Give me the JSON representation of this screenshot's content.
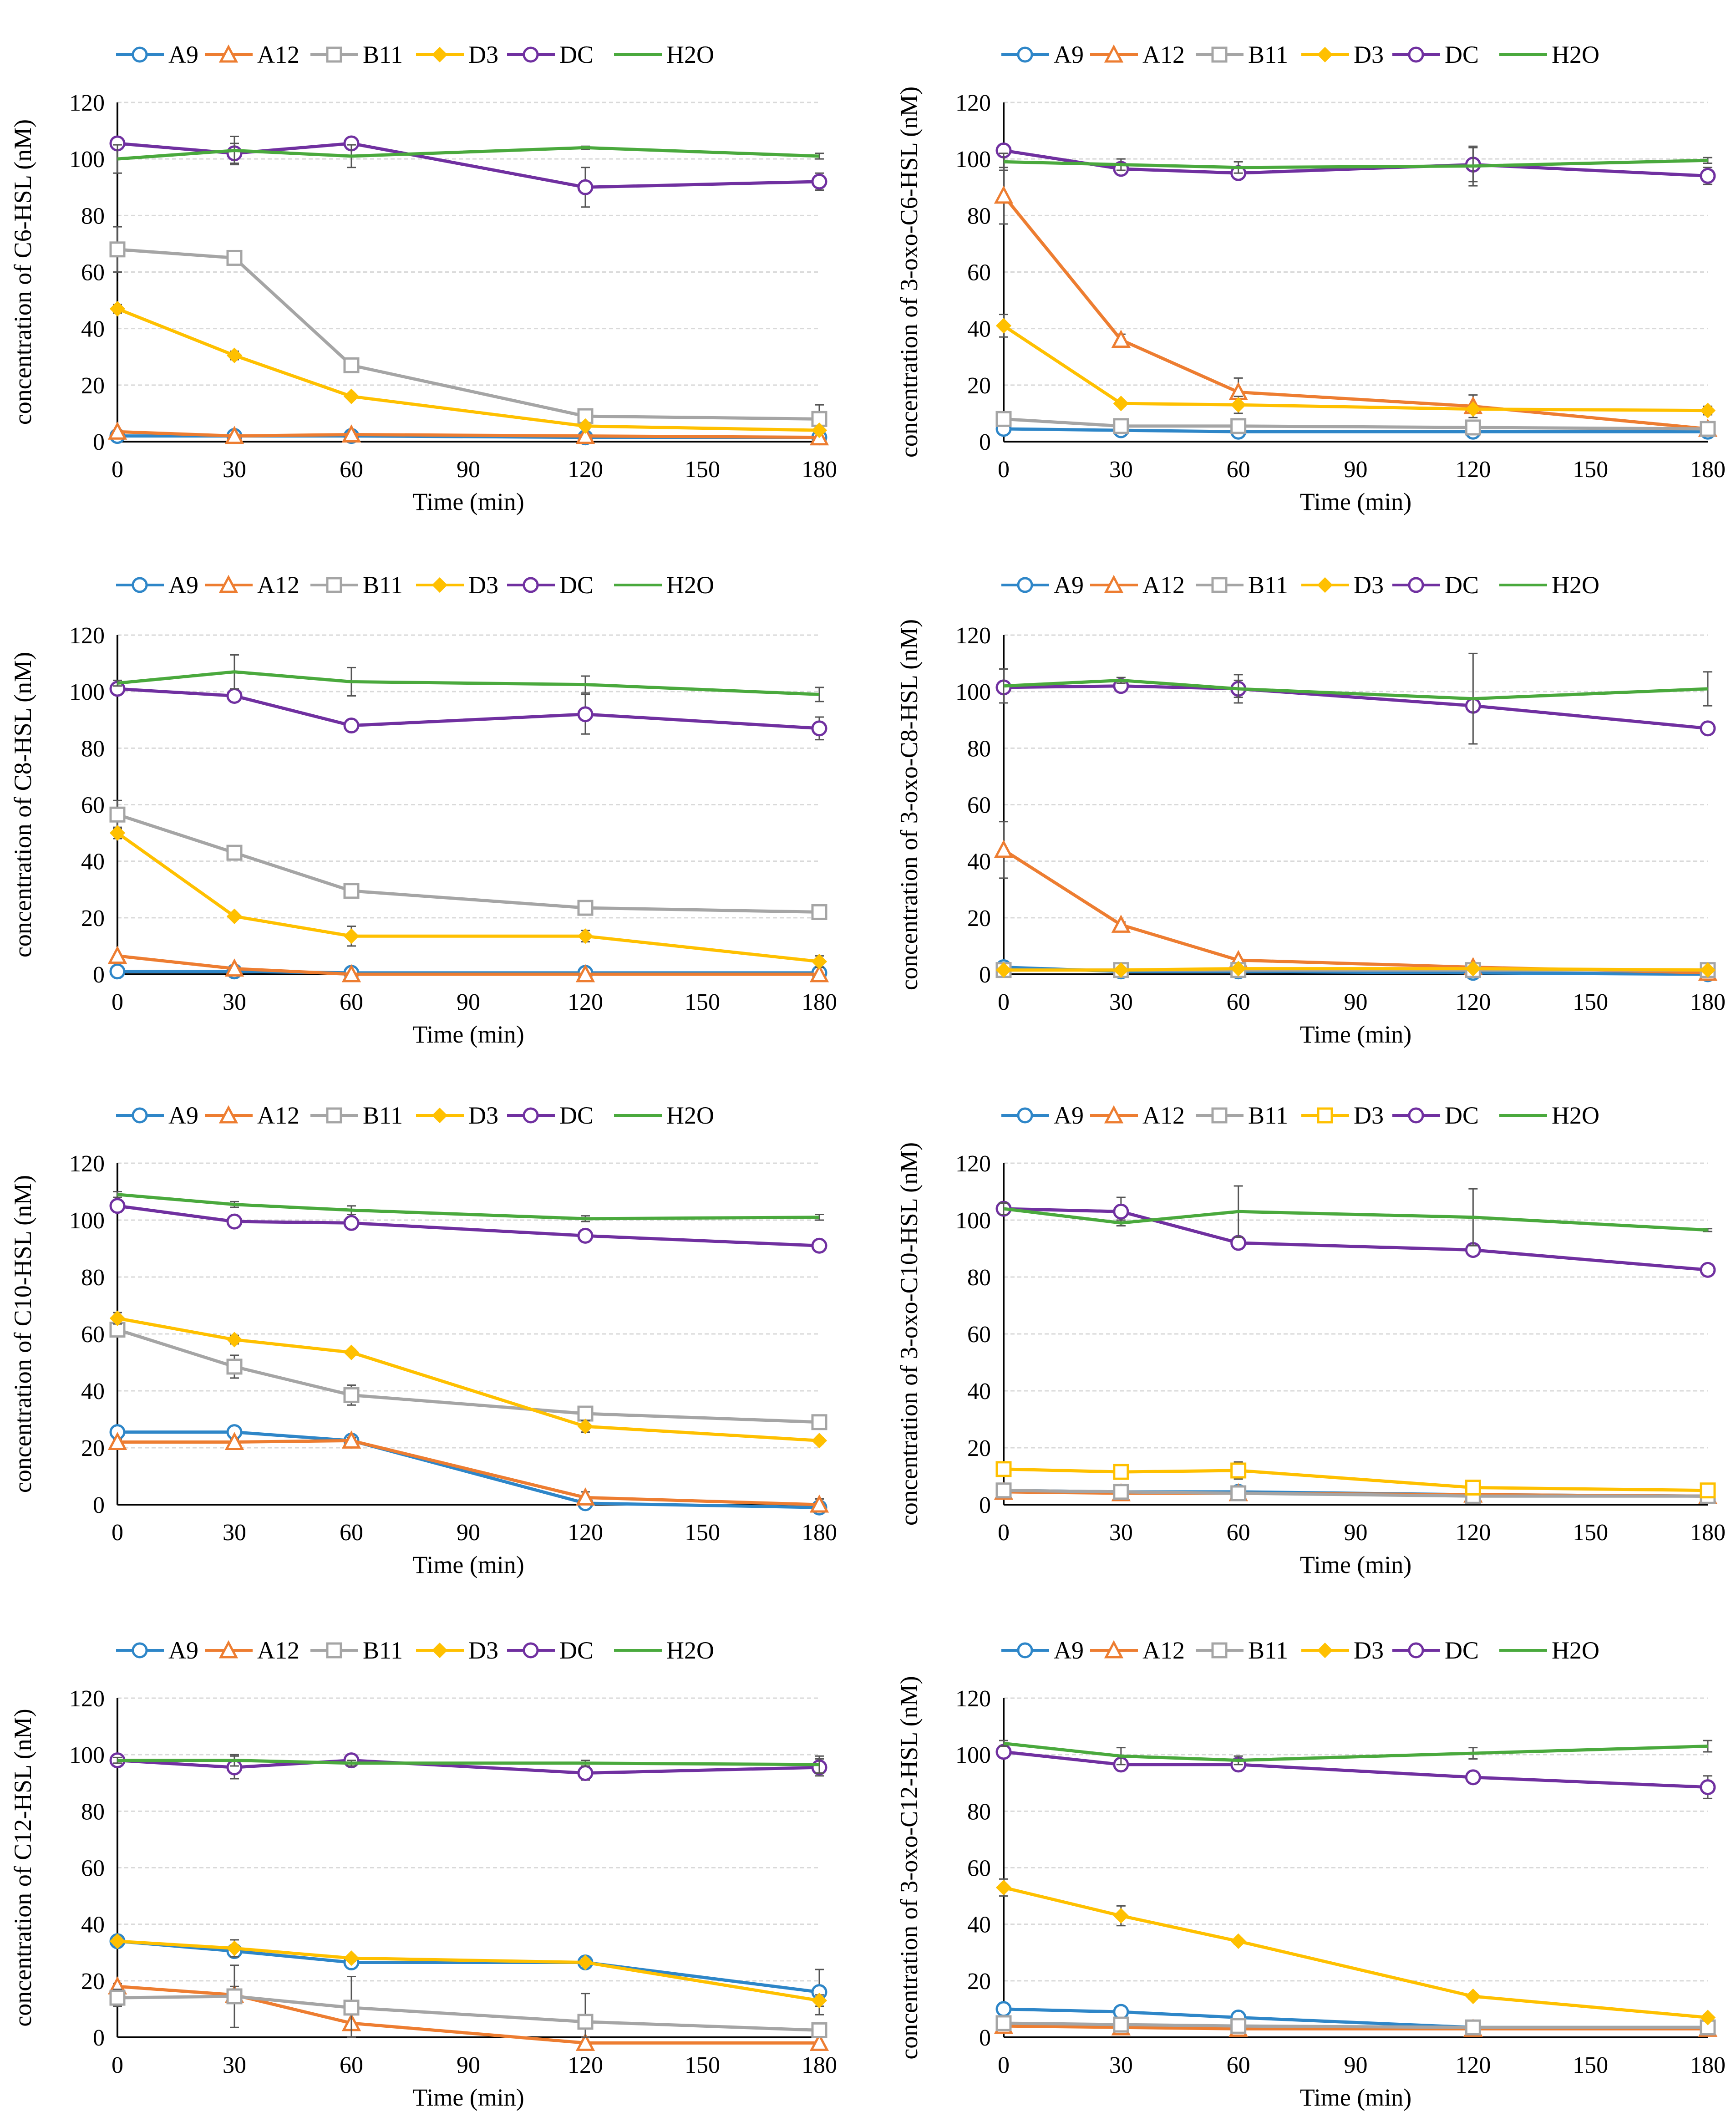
{
  "colors": {
    "A9": "#2e86c8",
    "A12": "#ed7d31",
    "B11": "#a5a5a5",
    "D3": "#ffc000",
    "DC": "#7030a0",
    "H2O": "#4aa93d",
    "grid": "#d9d9d9",
    "axis": "#000000",
    "errorbar": "#555555"
  },
  "chart_data": [
    {
      "type": "line",
      "title": "",
      "xlabel": "Time (min)",
      "ylabel": "concentration of C6-HSL (nM)",
      "x": [
        0,
        30,
        60,
        120,
        180
      ],
      "xlim": [
        0,
        180
      ],
      "ylim": [
        0,
        120
      ],
      "xticks": [
        0,
        30,
        60,
        90,
        120,
        150,
        180
      ],
      "yticks": [
        0,
        20,
        40,
        60,
        80,
        100,
        120
      ],
      "legend": "top",
      "series": [
        {
          "name": "A9",
          "marker": "circle",
          "values": [
            2,
            2,
            2,
            1.5,
            1.5
          ]
        },
        {
          "name": "A12",
          "marker": "triangle",
          "values": [
            3.5,
            2,
            2.5,
            2,
            1.5
          ]
        },
        {
          "name": "B11",
          "marker": "square",
          "values": [
            68,
            65,
            27,
            9,
            8
          ],
          "errors": [
            8,
            2,
            1.5,
            2,
            5
          ]
        },
        {
          "name": "D3",
          "marker": "diamond",
          "values": [
            47,
            30.5,
            16,
            5.5,
            4
          ],
          "errors": [
            1.5,
            1.5,
            1,
            1,
            1
          ]
        },
        {
          "name": "DC",
          "marker": "circle",
          "values": [
            105.5,
            102,
            105.5,
            90,
            92
          ],
          "errors": [
            1,
            3.5,
            1,
            7,
            3
          ]
        },
        {
          "name": "H2O",
          "marker": "none",
          "values": [
            100,
            103,
            101,
            104,
            101
          ],
          "errors": [
            5,
            5,
            4,
            0.5,
            1
          ]
        }
      ]
    },
    {
      "type": "line",
      "title": "",
      "xlabel": "Time (min)",
      "ylabel": "concentration of 3-oxo-C6-HSL (nM)",
      "x": [
        0,
        30,
        60,
        120,
        180
      ],
      "xlim": [
        0,
        180
      ],
      "ylim": [
        0,
        120
      ],
      "xticks": [
        0,
        30,
        60,
        90,
        120,
        150,
        180
      ],
      "yticks": [
        0,
        20,
        40,
        60,
        80,
        100,
        120
      ],
      "legend": "top",
      "series": [
        {
          "name": "A9",
          "marker": "circle",
          "values": [
            4.5,
            4,
            3.5,
            3.5,
            3.5
          ]
        },
        {
          "name": "A12",
          "marker": "triangle",
          "values": [
            87,
            36,
            17.5,
            12.5,
            4.5
          ],
          "errors": [
            10,
            2,
            5,
            4,
            1
          ]
        },
        {
          "name": "B11",
          "marker": "square",
          "values": [
            8,
            5.5,
            5.5,
            5,
            4.5
          ]
        },
        {
          "name": "D3",
          "marker": "diamond",
          "values": [
            41,
            13.5,
            13,
            11.5,
            11
          ],
          "errors": [
            4,
            1,
            3,
            1,
            1.5
          ]
        },
        {
          "name": "DC",
          "marker": "circle",
          "values": [
            103,
            96.5,
            95,
            98,
            94
          ],
          "errors": [
            2,
            2,
            2,
            6,
            3
          ]
        },
        {
          "name": "H2O",
          "marker": "none",
          "values": [
            99,
            98,
            97,
            97.5,
            99.5
          ],
          "errors": [
            3,
            2,
            2,
            7,
            1
          ]
        }
      ]
    },
    {
      "type": "line",
      "title": "",
      "xlabel": "Time (min)",
      "ylabel": "concentration of C8-HSL (nM)",
      "x": [
        0,
        30,
        60,
        120,
        180
      ],
      "xlim": [
        0,
        180
      ],
      "ylim": [
        0,
        120
      ],
      "xticks": [
        0,
        30,
        60,
        90,
        120,
        150,
        180
      ],
      "yticks": [
        0,
        20,
        40,
        60,
        80,
        100,
        120
      ],
      "legend": "top",
      "series": [
        {
          "name": "A9",
          "marker": "circle",
          "values": [
            1,
            1,
            0.5,
            0.5,
            0.5
          ]
        },
        {
          "name": "A12",
          "marker": "triangle",
          "values": [
            6.5,
            2,
            0,
            0,
            0
          ]
        },
        {
          "name": "B11",
          "marker": "square",
          "values": [
            56.5,
            43,
            29.5,
            23.5,
            22
          ],
          "errors": [
            5,
            1.5,
            1.5,
            1,
            1
          ]
        },
        {
          "name": "D3",
          "marker": "diamond",
          "values": [
            50,
            20.5,
            13.5,
            13.5,
            4.5
          ],
          "errors": [
            2,
            1,
            3.5,
            2,
            2
          ]
        },
        {
          "name": "DC",
          "marker": "circle",
          "values": [
            101,
            98.5,
            88,
            92,
            87
          ],
          "errors": [
            1,
            1.5,
            1,
            7,
            4
          ]
        },
        {
          "name": "H2O",
          "marker": "none",
          "values": [
            103,
            107,
            103.5,
            102.5,
            99
          ],
          "errors": [
            1,
            6,
            5,
            3,
            2.5
          ]
        }
      ]
    },
    {
      "type": "line",
      "title": "",
      "xlabel": "Time (min)",
      "ylabel": "concentration of 3-oxo-C8-HSL (nM)",
      "x": [
        0,
        30,
        60,
        120,
        180
      ],
      "xlim": [
        0,
        180
      ],
      "ylim": [
        0,
        120
      ],
      "xticks": [
        0,
        30,
        60,
        90,
        120,
        150,
        180
      ],
      "yticks": [
        0,
        20,
        40,
        60,
        80,
        100,
        120
      ],
      "legend": "top",
      "series": [
        {
          "name": "A9",
          "marker": "circle",
          "values": [
            2.5,
            1,
            1,
            0.5,
            0
          ]
        },
        {
          "name": "A12",
          "marker": "triangle",
          "values": [
            44,
            17.5,
            5,
            2.5,
            0.5
          ],
          "errors": [
            10,
            1,
            0.5,
            0.5,
            0.5
          ]
        },
        {
          "name": "B11",
          "marker": "square",
          "values": [
            1.5,
            1.5,
            1.5,
            1.5,
            1.5
          ]
        },
        {
          "name": "D3",
          "marker": "diamond",
          "values": [
            1.5,
            1.5,
            2,
            2,
            1.5
          ]
        },
        {
          "name": "DC",
          "marker": "circle",
          "values": [
            101.5,
            102,
            101,
            95,
            87
          ],
          "errors": [
            1,
            1,
            3,
            1,
            1
          ]
        },
        {
          "name": "H2O",
          "marker": "none",
          "values": [
            102,
            104,
            101,
            97.5,
            101
          ],
          "errors": [
            6,
            1,
            5,
            16,
            6
          ]
        }
      ]
    },
    {
      "type": "line",
      "title": "",
      "xlabel": "Time (min)",
      "ylabel": "concentration of C10-HSL (nM)",
      "x": [
        0,
        30,
        60,
        120,
        180
      ],
      "xlim": [
        0,
        180
      ],
      "ylim": [
        0,
        120
      ],
      "xticks": [
        0,
        30,
        60,
        90,
        120,
        150,
        180
      ],
      "yticks": [
        0,
        20,
        40,
        60,
        80,
        100,
        120
      ],
      "legend": "top",
      "series": [
        {
          "name": "A9",
          "marker": "circle",
          "values": [
            25.5,
            25.5,
            22.5,
            0.5,
            -1
          ]
        },
        {
          "name": "A12",
          "marker": "triangle",
          "values": [
            22,
            22,
            22.5,
            2.5,
            0
          ],
          "errors": [
            1,
            1,
            1,
            2,
            2
          ]
        },
        {
          "name": "B11",
          "marker": "square",
          "values": [
            61.5,
            48.5,
            38.5,
            32,
            29
          ],
          "errors": [
            2,
            4,
            3.5,
            1.5,
            1
          ]
        },
        {
          "name": "D3",
          "marker": "diamond",
          "values": [
            65.5,
            58,
            53.5,
            27.5,
            22.5
          ],
          "errors": [
            2,
            1.5,
            1,
            2,
            1
          ]
        },
        {
          "name": "DC",
          "marker": "circle",
          "values": [
            105,
            99.5,
            99,
            94.5,
            91
          ],
          "errors": [
            1,
            1,
            1,
            1,
            2
          ]
        },
        {
          "name": "H2O",
          "marker": "none",
          "values": [
            109,
            105.5,
            103.5,
            100.5,
            101
          ],
          "errors": [
            1,
            1,
            1.5,
            1,
            1
          ]
        }
      ]
    },
    {
      "type": "line",
      "title": "",
      "xlabel": "Time (min)",
      "ylabel": "concentration of 3-oxo-C10-HSL (nM)",
      "x": [
        0,
        30,
        60,
        120,
        180
      ],
      "xlim": [
        0,
        180
      ],
      "ylim": [
        0,
        120
      ],
      "xticks": [
        0,
        30,
        60,
        90,
        120,
        150,
        180
      ],
      "yticks": [
        0,
        20,
        40,
        60,
        80,
        100,
        120
      ],
      "legend": "top",
      "series": [
        {
          "name": "A9",
          "marker": "circle",
          "values": [
            5,
            4.5,
            4.5,
            3.5,
            3
          ]
        },
        {
          "name": "A12",
          "marker": "triangle",
          "values": [
            4.5,
            4,
            4,
            3.5,
            3
          ]
        },
        {
          "name": "B11",
          "marker": "square",
          "values": [
            5,
            4.5,
            4,
            3,
            3
          ]
        },
        {
          "name": "D3",
          "marker": "square",
          "values": [
            12.5,
            11.5,
            12,
            6,
            5
          ],
          "errors": [
            1,
            1,
            3,
            1,
            1
          ]
        },
        {
          "name": "DC",
          "marker": "circle",
          "values": [
            104,
            103,
            92,
            89.5,
            82.5
          ],
          "errors": [
            1,
            5,
            1,
            1,
            1
          ]
        },
        {
          "name": "H2O",
          "marker": "none",
          "values": [
            104,
            99,
            103,
            101,
            96.5
          ],
          "errors": [
            2,
            1,
            9,
            10,
            0.5
          ]
        }
      ]
    },
    {
      "type": "line",
      "title": "",
      "xlabel": "Time (min)",
      "ylabel": "concentration of C12-HSL (nM)",
      "x": [
        0,
        30,
        60,
        120,
        180
      ],
      "xlim": [
        0,
        180
      ],
      "ylim": [
        0,
        120
      ],
      "xticks": [
        0,
        30,
        60,
        90,
        120,
        150,
        180
      ],
      "yticks": [
        0,
        20,
        40,
        60,
        80,
        100,
        120
      ],
      "legend": "top",
      "series": [
        {
          "name": "A9",
          "marker": "circle",
          "values": [
            34,
            30.5,
            26.5,
            26.5,
            16
          ],
          "errors": [
            1,
            2,
            1.5,
            1,
            8
          ]
        },
        {
          "name": "A12",
          "marker": "triangle",
          "values": [
            18,
            15,
            5,
            -2,
            -2
          ],
          "errors": [
            1,
            3,
            5,
            0,
            0
          ]
        },
        {
          "name": "B11",
          "marker": "square",
          "values": [
            14,
            14.5,
            10.5,
            5.5,
            2.5
          ],
          "errors": [
            3,
            11,
            11,
            10,
            2
          ]
        },
        {
          "name": "D3",
          "marker": "diamond",
          "values": [
            34,
            31.5,
            28,
            26.5,
            13
          ],
          "errors": [
            1,
            3,
            1,
            1,
            2
          ]
        },
        {
          "name": "DC",
          "marker": "circle",
          "values": [
            98,
            95.5,
            98,
            93.5,
            95.5
          ],
          "errors": [
            1,
            4,
            1,
            2.5,
            3
          ]
        },
        {
          "name": "H2O",
          "marker": "none",
          "values": [
            98,
            98,
            97,
            97,
            96.5
          ],
          "errors": [
            1,
            2,
            1,
            1,
            3
          ]
        }
      ]
    },
    {
      "type": "line",
      "title": "",
      "xlabel": "Time (min)",
      "ylabel": "concentration of 3-oxo-C12-HSL (nM)",
      "x": [
        0,
        30,
        60,
        120,
        180
      ],
      "xlim": [
        0,
        180
      ],
      "ylim": [
        0,
        120
      ],
      "xticks": [
        0,
        30,
        60,
        90,
        120,
        150,
        180
      ],
      "yticks": [
        0,
        20,
        40,
        60,
        80,
        100,
        120
      ],
      "legend": "top",
      "series": [
        {
          "name": "A9",
          "marker": "circle",
          "values": [
            10,
            9,
            7,
            3.5,
            3.5
          ]
        },
        {
          "name": "A12",
          "marker": "triangle",
          "values": [
            4,
            3.5,
            3,
            3,
            3
          ]
        },
        {
          "name": "B11",
          "marker": "square",
          "values": [
            5,
            4.5,
            4,
            3.5,
            3.5
          ]
        },
        {
          "name": "D3",
          "marker": "diamond",
          "values": [
            53,
            43,
            34,
            14.5,
            7
          ],
          "errors": [
            3,
            3.5,
            1,
            1,
            1
          ]
        },
        {
          "name": "DC",
          "marker": "circle",
          "values": [
            101,
            96.5,
            96.5,
            92,
            88.5
          ],
          "errors": [
            1,
            1.5,
            1,
            1,
            4
          ]
        },
        {
          "name": "H2O",
          "marker": "none",
          "values": [
            104,
            99.5,
            98,
            100.5,
            103
          ],
          "errors": [
            1,
            3,
            1.5,
            2,
            2
          ]
        }
      ]
    }
  ]
}
